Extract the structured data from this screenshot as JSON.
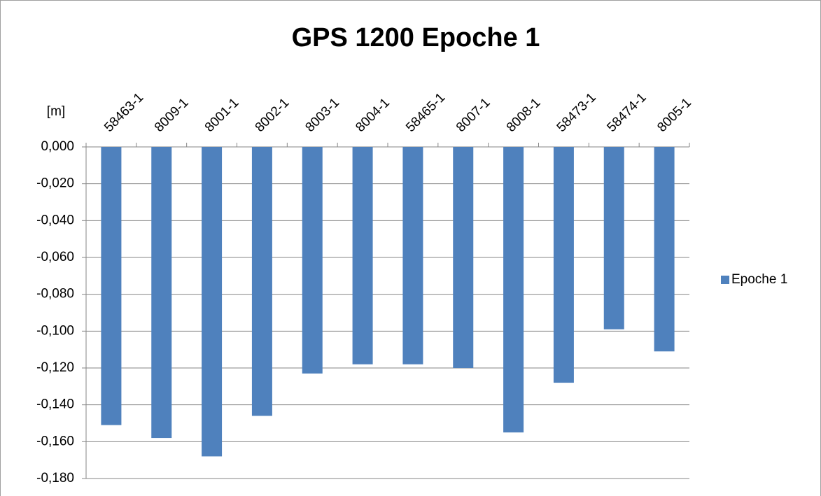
{
  "chart_data": {
    "type": "bar",
    "title": "GPS 1200 Epoche 1",
    "y_label": "[m]",
    "categories": [
      "58463-1",
      "8009-1",
      "8001-1",
      "8002-1",
      "8003-1",
      "8004-1",
      "58465-1",
      "8007-1",
      "8008-1",
      "58473-1",
      "58474-1",
      "8005-1"
    ],
    "series": [
      {
        "name": "Epoche 1",
        "color": "#4f81bd",
        "values": [
          -0.151,
          -0.158,
          -0.168,
          -0.146,
          -0.123,
          -0.118,
          -0.118,
          -0.12,
          -0.155,
          -0.128,
          -0.099,
          -0.111
        ]
      }
    ],
    "ylim": [
      -0.18,
      0
    ],
    "yticks": [
      {
        "value": 0,
        "label": "0,000"
      },
      {
        "value": -0.02,
        "label": "-0,020"
      },
      {
        "value": -0.04,
        "label": "-0,040"
      },
      {
        "value": -0.06,
        "label": "-0,060"
      },
      {
        "value": -0.08,
        "label": "-0,080"
      },
      {
        "value": -0.1,
        "label": "-0,100"
      },
      {
        "value": -0.12,
        "label": "-0,120"
      },
      {
        "value": -0.14,
        "label": "-0,140"
      },
      {
        "value": -0.16,
        "label": "-0,160"
      },
      {
        "value": -0.18,
        "label": "-0,180"
      }
    ],
    "grid": true,
    "legend": "right"
  }
}
